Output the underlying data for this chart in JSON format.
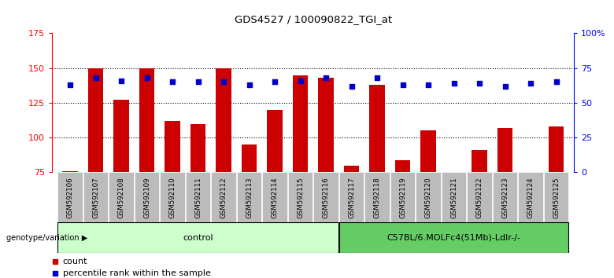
{
  "title": "GDS4527 / 100090822_TGI_at",
  "samples": [
    "GSM592106",
    "GSM592107",
    "GSM592108",
    "GSM592109",
    "GSM592110",
    "GSM592111",
    "GSM592112",
    "GSM592113",
    "GSM592114",
    "GSM592115",
    "GSM592116",
    "GSM592117",
    "GSM592118",
    "GSM592119",
    "GSM592120",
    "GSM592121",
    "GSM592122",
    "GSM592123",
    "GSM592124",
    "GSM592125"
  ],
  "counts": [
    76,
    150,
    127,
    150,
    112,
    110,
    150,
    95,
    120,
    145,
    143,
    80,
    138,
    84,
    105,
    65,
    91,
    107,
    65,
    108
  ],
  "percentile_ranks": [
    63,
    68,
    66,
    68,
    65,
    65,
    65,
    63,
    65,
    66,
    68,
    62,
    68,
    63,
    63,
    64,
    64,
    62,
    64,
    65
  ],
  "ylim_left": [
    75,
    175
  ],
  "ylim_right": [
    0,
    100
  ],
  "yticks_left": [
    75,
    100,
    125,
    150,
    175
  ],
  "yticks_right": [
    0,
    25,
    50,
    75,
    100
  ],
  "ytick_labels_right": [
    "0",
    "25",
    "50",
    "75",
    "100%"
  ],
  "bar_color": "#cc0000",
  "dot_color": "#0000cc",
  "n_control": 11,
  "n_total": 20,
  "control_label": "control",
  "treatment_label": "C57BL/6.MOLFc4(51Mb)-Ldlr-/-",
  "control_color": "#ccffcc",
  "treatment_color": "#66cc66",
  "genotype_label": "genotype/variation",
  "legend_count": "count",
  "legend_pct": "percentile rank within the sample",
  "xticklabel_bg": "#bbbbbb"
}
